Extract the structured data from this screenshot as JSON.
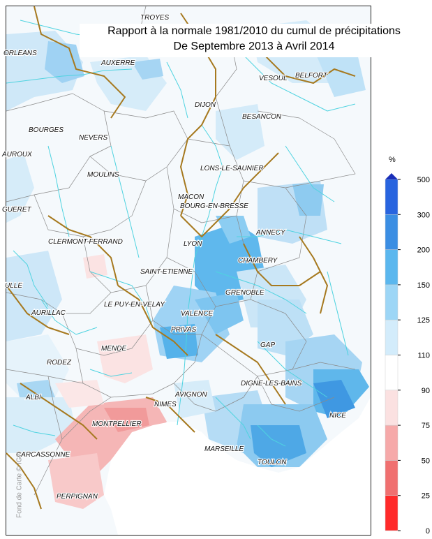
{
  "title": {
    "line1": "Rapport à la normale 1981/2010 du cumul de précipitations",
    "line2": "De Septembre 2013 à Avril 2014"
  },
  "credit": "Fond de Carte © IGN",
  "legend": {
    "unit": "%",
    "ticks": [
      "0",
      "25",
      "50",
      "75",
      "90",
      "110",
      "125",
      "150",
      "200",
      "300",
      "500"
    ],
    "colors": [
      "#ff2a2a",
      "#f07070",
      "#f6a9a9",
      "#fbe1e1",
      "#ffffff",
      "#d3ecfb",
      "#9dd6f6",
      "#5bb7ee",
      "#3b8ee3",
      "#2864df"
    ],
    "cap_color": "#1a2fb8"
  },
  "palette": {
    "river": "#4fd3e0",
    "boundary": "#a6791f",
    "dept_border": "#8a8a8a",
    "sea": "#ffffff"
  },
  "cities": [
    {
      "name": "TROYES"
    },
    {
      "name": "ORLEANS"
    },
    {
      "name": "AUXERRE"
    },
    {
      "name": "VESOUL"
    },
    {
      "name": "BELFORT"
    },
    {
      "name": "DIJON"
    },
    {
      "name": "BESANCON"
    },
    {
      "name": "BOURGES"
    },
    {
      "name": "NEVERS"
    },
    {
      "name": "AUROUX"
    },
    {
      "name": "MOULINS"
    },
    {
      "name": "LONS-LE-SAUNIER"
    },
    {
      "name": "MACON"
    },
    {
      "name": "BOURG-EN-BRESSE"
    },
    {
      "name": "GUERET"
    },
    {
      "name": "ANNECY"
    },
    {
      "name": "CLERMONT-FERRAND"
    },
    {
      "name": "LYON"
    },
    {
      "name": "CHAMBERY"
    },
    {
      "name": "SAINT-ETIENNE"
    },
    {
      "name": "ULLE"
    },
    {
      "name": "GRENOBLE"
    },
    {
      "name": "AURILLAC"
    },
    {
      "name": "LE PUY-EN-VELAY"
    },
    {
      "name": "VALENCE"
    },
    {
      "name": "PRIVAS"
    },
    {
      "name": "GAP"
    },
    {
      "name": "MENDE"
    },
    {
      "name": "RODEZ"
    },
    {
      "name": "DIGNE-LES-BAINS"
    },
    {
      "name": "AVIGNON"
    },
    {
      "name": "ALBI"
    },
    {
      "name": "NIMES"
    },
    {
      "name": "NICE"
    },
    {
      "name": "MONTPELLIER"
    },
    {
      "name": "MARSEILLE"
    },
    {
      "name": "CARCASSONNE"
    },
    {
      "name": "TOULON"
    },
    {
      "name": "PERPIGNAN"
    }
  ]
}
